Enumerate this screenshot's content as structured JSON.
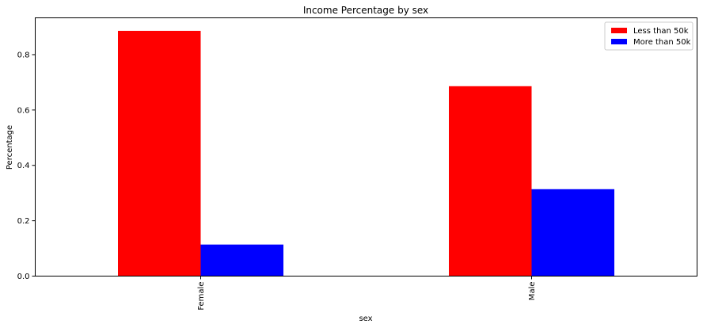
{
  "chart_data": {
    "type": "bar",
    "title": "Income Percentage by sex",
    "xlabel": "sex",
    "ylabel": "Percentage",
    "categories": [
      "Female",
      "Male"
    ],
    "series": [
      {
        "name": "Less than 50k",
        "color": "#ff0000",
        "values": [
          0.886,
          0.686
        ]
      },
      {
        "name": "More than 50k",
        "color": "#0000ff",
        "values": [
          0.114,
          0.314
        ]
      }
    ],
    "ylim": [
      0,
      0.933
    ],
    "yticks": [
      0.0,
      0.2,
      0.4,
      0.6,
      0.8
    ],
    "ytick_labels": [
      "0.0",
      "0.2",
      "0.4",
      "0.6",
      "0.8"
    ],
    "grid": false,
    "legend_position": "top-right"
  }
}
